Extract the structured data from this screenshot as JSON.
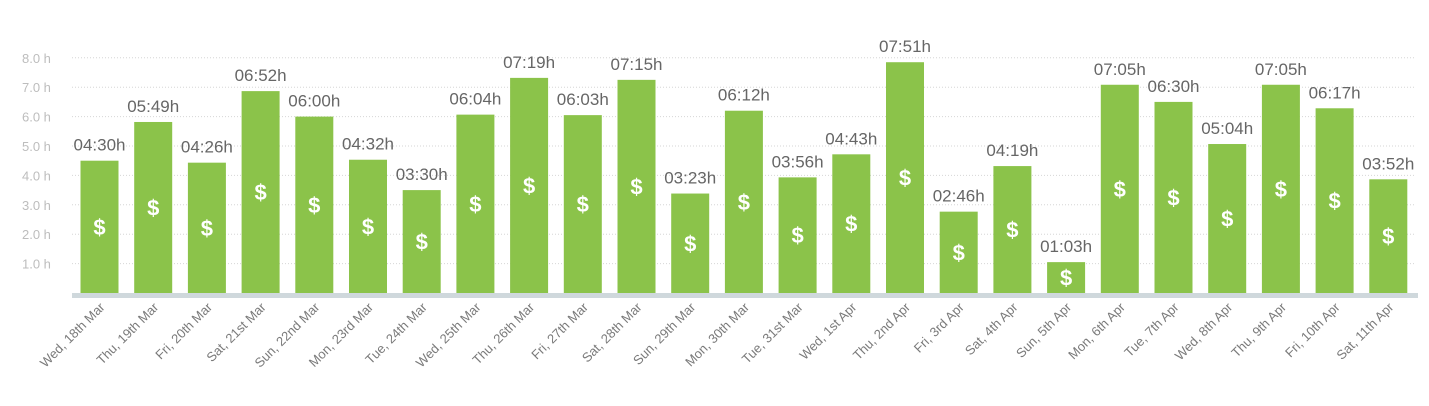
{
  "chart_data": {
    "type": "bar",
    "title": "",
    "xlabel": "",
    "ylabel": "",
    "ylim": [
      0,
      8
    ],
    "yticks": [
      1,
      2,
      3,
      4,
      5,
      6,
      7,
      8
    ],
    "ytick_labels": [
      "1.0 h",
      "2.0 h",
      "3.0 h",
      "4.0 h",
      "5.0 h",
      "6.0 h",
      "7.0 h",
      "8.0 h"
    ],
    "grid": true,
    "bar_color": "#8bc34a",
    "baseline_color": "#cfd8dc",
    "bar_icon": "dollar-sign-icon",
    "bar_icon_glyph": "$",
    "categories": [
      "Wed, 18th Mar",
      "Thu, 19th Mar",
      "Fri, 20th Mar",
      "Sat, 21st Mar",
      "Sun, 22nd Mar",
      "Mon, 23rd Mar",
      "Tue, 24th Mar",
      "Wed, 25th Mar",
      "Thu, 26th Mar",
      "Fri, 27th Mar",
      "Sat, 28th Mar",
      "Sun, 29th Mar",
      "Mon, 30th Mar",
      "Tue, 31st Mar",
      "Wed, 1st Apr",
      "Thu, 2nd Apr",
      "Fri, 3rd Apr",
      "Sat, 4th Apr",
      "Sun, 5th Apr",
      "Mon, 6th Apr",
      "Tue, 7th Apr",
      "Wed, 8th Apr",
      "Thu, 9th Apr",
      "Fri, 10th Apr",
      "Sat, 11th Apr"
    ],
    "values": [
      4.5,
      5.817,
      4.433,
      6.867,
      6.0,
      4.533,
      3.5,
      6.067,
      7.317,
      6.05,
      7.25,
      3.383,
      6.2,
      3.933,
      4.717,
      7.85,
      2.767,
      4.317,
      1.05,
      7.083,
      6.5,
      5.067,
      7.083,
      6.283,
      3.867
    ],
    "labels": [
      "04:30h",
      "05:49h",
      "04:26h",
      "06:52h",
      "06:00h",
      "04:32h",
      "03:30h",
      "06:04h",
      "07:19h",
      "06:03h",
      "07:15h",
      "03:23h",
      "06:12h",
      "03:56h",
      "04:43h",
      "07:51h",
      "02:46h",
      "04:19h",
      "01:03h",
      "07:05h",
      "06:30h",
      "05:04h",
      "07:05h",
      "06:17h",
      "03:52h"
    ]
  }
}
